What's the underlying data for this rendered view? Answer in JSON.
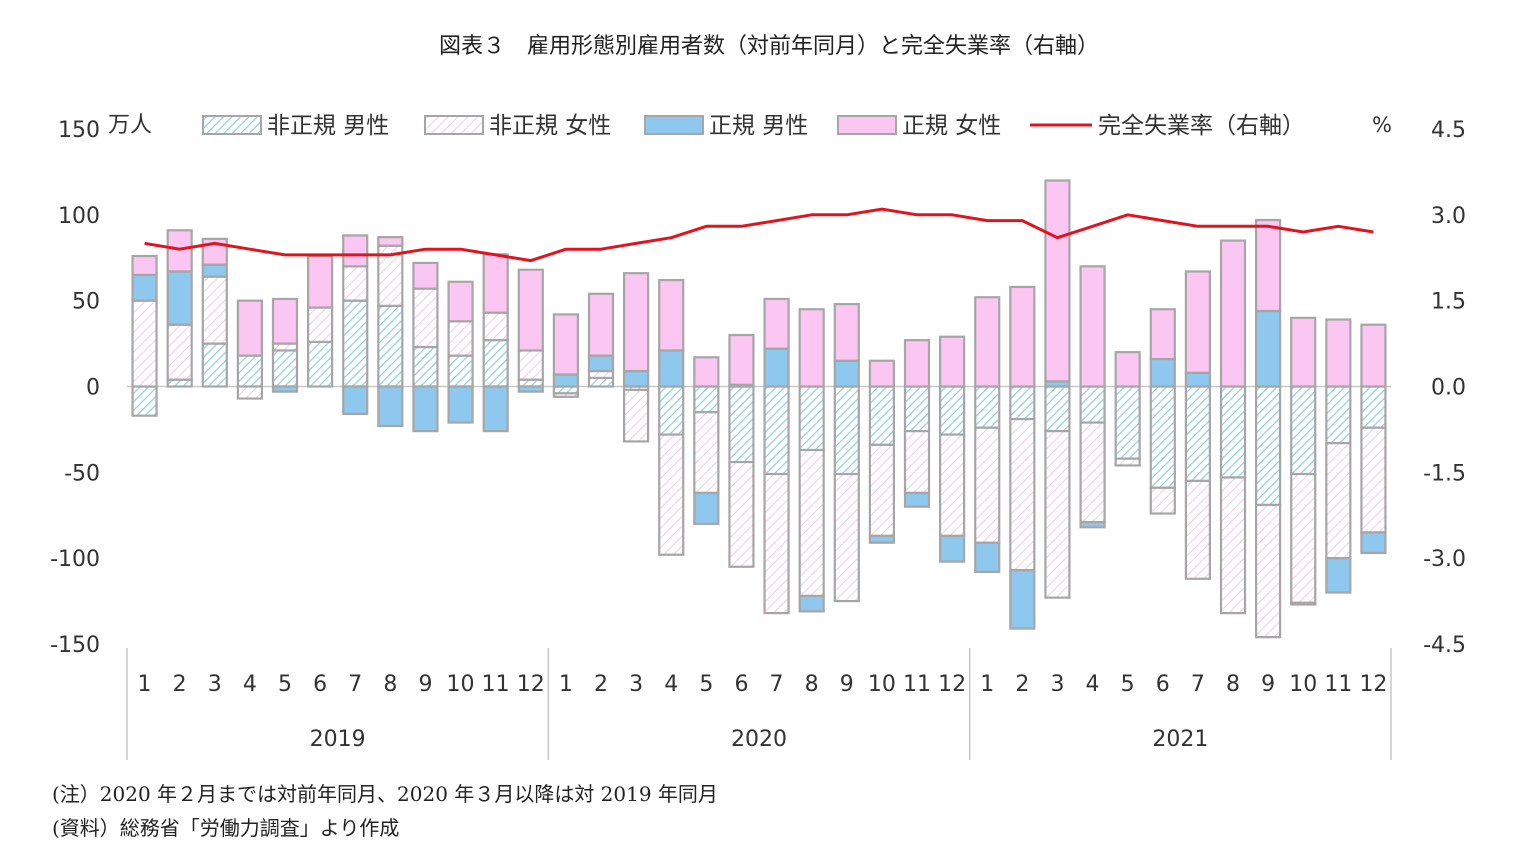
{
  "chart_data": {
    "type": "bar",
    "title": "図表３　雇用形態別雇用者数（対前年同月）と完全失業率（右軸）",
    "y_left_unit": "万人",
    "y_right_unit": "%",
    "ylim_left": [
      -150,
      150
    ],
    "y_left_ticks": [
      150,
      100,
      50,
      0,
      -50,
      -100,
      -150
    ],
    "ylim_right": [
      -4.5,
      4.5
    ],
    "y_right_ticks": [
      "4.5",
      "3.0",
      "1.5",
      "0.0",
      "-1.5",
      "-3.0",
      "-4.5"
    ],
    "grid": false,
    "legend_position": "top",
    "month_labels": [
      "1",
      "2",
      "3",
      "4",
      "5",
      "6",
      "7",
      "8",
      "9",
      "10",
      "11",
      "12",
      "1",
      "2",
      "3",
      "4",
      "5",
      "6",
      "7",
      "8",
      "9",
      "10",
      "11",
      "12",
      "1",
      "2",
      "3",
      "4",
      "5",
      "6",
      "7",
      "8",
      "9",
      "10",
      "11",
      "12"
    ],
    "years": [
      "2019",
      "2020",
      "2021"
    ],
    "series": [
      {
        "name": "非正規 男性",
        "kind": "bar",
        "color": "#9fd4e0",
        "values": [
          -17,
          4,
          25,
          18,
          21,
          26,
          50,
          47,
          23,
          18,
          27,
          4,
          -4,
          5,
          -2,
          -28,
          -15,
          -44,
          -51,
          -37,
          -51,
          -34,
          -26,
          -28,
          -24,
          -19,
          -26,
          -21,
          -42,
          -59,
          -55,
          -53,
          -69,
          -51,
          -33,
          -24
        ]
      },
      {
        "name": "非正規 女性",
        "kind": "bar",
        "color": "#f2b6d8",
        "values": [
          50,
          32,
          39,
          -7,
          4,
          20,
          20,
          35,
          34,
          20,
          16,
          17,
          -2,
          4,
          -30,
          -70,
          -47,
          -61,
          -81,
          -85,
          -74,
          -53,
          -36,
          -59,
          -67,
          -88,
          -97,
          -58,
          -4,
          -15,
          -57,
          -79,
          -77,
          -75,
          -67,
          -61
        ]
      },
      {
        "name": "正規 男性",
        "kind": "bar",
        "color": "#8ec8ee",
        "values": [
          15,
          31,
          7,
          0,
          -3,
          0,
          -16,
          -23,
          -26,
          -21,
          -26,
          -3,
          7,
          9,
          9,
          21,
          -18,
          1,
          22,
          -9,
          15,
          -4,
          -8,
          -15,
          -17,
          -34,
          3,
          -3,
          0,
          16,
          8,
          0,
          44,
          -1,
          -20,
          -12
        ]
      },
      {
        "name": "正規 女性",
        "kind": "bar",
        "color": "#fcc6f2",
        "values": [
          11,
          24,
          15,
          32,
          26,
          30,
          18,
          5,
          15,
          23,
          34,
          47,
          35,
          36,
          57,
          41,
          17,
          29,
          29,
          45,
          33,
          15,
          27,
          29,
          52,
          58,
          117,
          70,
          20,
          29,
          59,
          85,
          53,
          40,
          39,
          36
        ]
      },
      {
        "name": "完全失業率（右軸）",
        "kind": "line",
        "color": "#e0141e",
        "values": [
          2.5,
          2.4,
          2.5,
          2.4,
          2.3,
          2.3,
          2.3,
          2.3,
          2.4,
          2.4,
          2.3,
          2.2,
          2.4,
          2.4,
          2.5,
          2.6,
          2.8,
          2.8,
          2.9,
          3.0,
          3.0,
          3.1,
          3.0,
          3.0,
          2.9,
          2.9,
          2.6,
          2.8,
          3.0,
          2.9,
          2.8,
          2.8,
          2.8,
          2.7,
          2.8,
          2.7
        ]
      }
    ]
  },
  "notes": [
    "(注）2020 年２月までは対前年同月、2020 年３月以降は対 2019 年同月",
    "(資料）総務省「労働力調査」より作成"
  ]
}
